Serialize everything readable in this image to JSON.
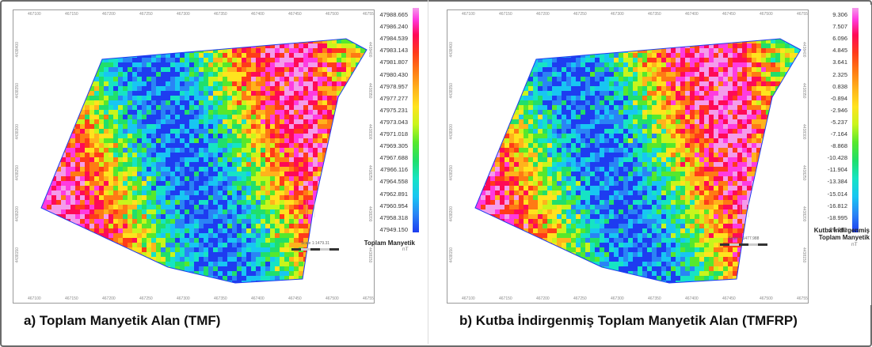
{
  "figure": {
    "panels": [
      {
        "caption": "a) Toplam Manyetik Alan (TMF)",
        "legend_title": "Toplam  Manyetik",
        "legend_unit": "nT",
        "legend_values": [
          "47988.665",
          "47986.240",
          "47984.539",
          "47983.143",
          "47981.807",
          "47980.430",
          "47978.957",
          "47977.277",
          "47975.231",
          "47973.043",
          "47971.018",
          "47969.305",
          "47967.688",
          "47966.116",
          "47964.558",
          "47962.891",
          "47960.954",
          "47958.318",
          "47949.150"
        ],
        "scale_label": "Scale 1:1479.31",
        "x_ticks": [
          "467100",
          "467150",
          "467200",
          "467250",
          "467300",
          "467350",
          "467400",
          "467450",
          "467500",
          "467550"
        ],
        "y_ticks": [
          "4438400",
          "4438350",
          "4438300",
          "4438250",
          "4438200",
          "4438150"
        ]
      },
      {
        "caption": "b) Kutba İndirgenmiş Toplam Manyetik Alan (TMFRP)",
        "legend_title_line1": "Kutba İndirgenmiş",
        "legend_title_line2": "Toplam Manyetik",
        "legend_unit": "nT",
        "legend_values": [
          "9.306",
          "7.507",
          "6.096",
          "4.845",
          "3.641",
          "2.325",
          "0.838",
          "-0.894",
          "-2.946",
          "-5.237",
          "-7.164",
          "-8.868",
          "-10.428",
          "-11.904",
          "-13.384",
          "-15.014",
          "-16.812",
          "-18.995",
          "-26.281"
        ],
        "scale_label": "Scale 1:1477.988",
        "x_ticks": [
          "467100",
          "467150",
          "467200",
          "467250",
          "467300",
          "467350",
          "467400",
          "467450",
          "467500",
          "467550"
        ],
        "y_ticks": [
          "4438400",
          "4438350",
          "4438300",
          "4438250",
          "4438200",
          "4438150"
        ]
      }
    ],
    "colors": {
      "ramp_high": "#ff3be0",
      "ramp_mid": "#ffe31e",
      "ramp_low": "#1e3cf0",
      "caption_text": "#111111"
    }
  }
}
